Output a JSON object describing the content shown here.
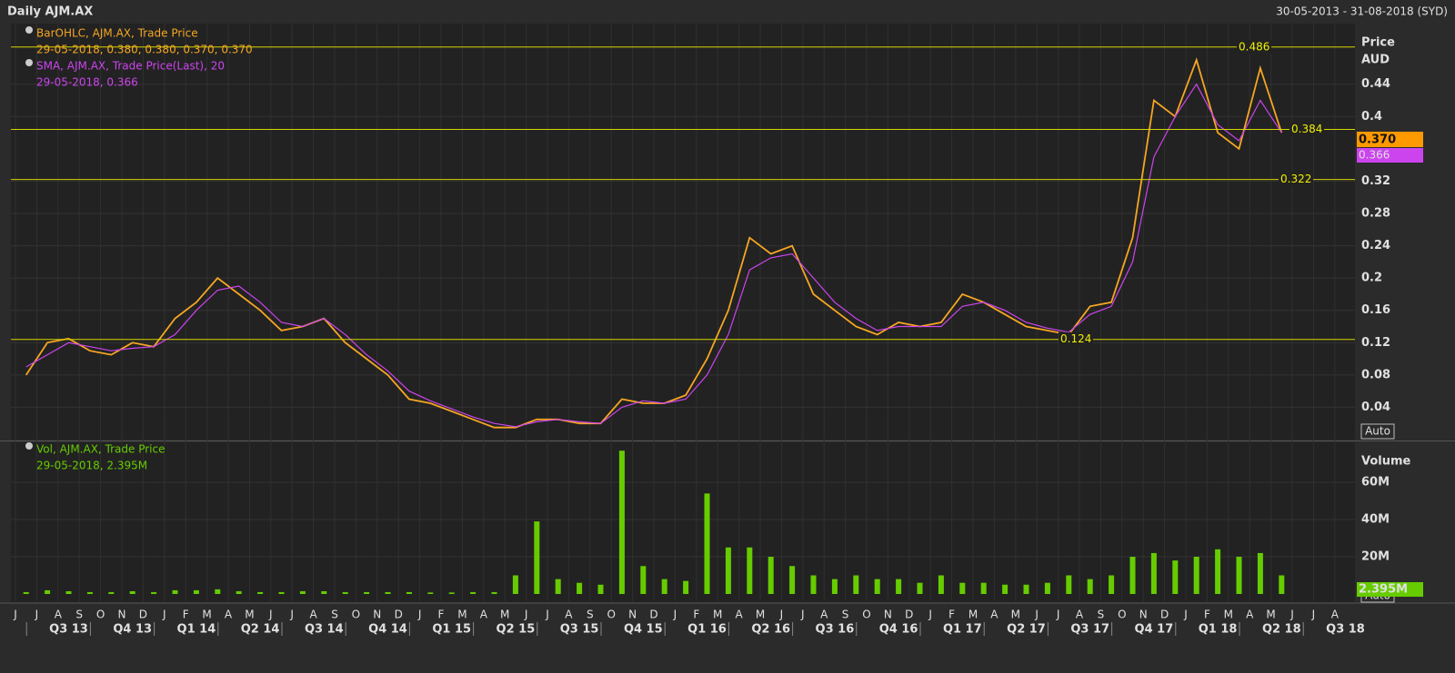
{
  "header": {
    "title": "Daily AJM.AX",
    "range": "30-05-2013 - 31-08-2018 (SYD)"
  },
  "chart_data": [
    {
      "type": "line",
      "axis_title": "Price",
      "unit": "AUD",
      "legend": [
        {
          "name": "BarOHLC, AJM.AX, Trade Price",
          "last": "29-05-2018, 0.380, 0.380, 0.370, 0.370"
        },
        {
          "name": "SMA, AJM.AX, Trade Price(Last),  20",
          "last": "29-05-2018, 0.366"
        }
      ],
      "series": [
        {
          "name": "BarOHLC",
          "color": "#f5a623",
          "values": [
            0.08,
            0.12,
            0.125,
            0.11,
            0.105,
            0.12,
            0.115,
            0.15,
            0.17,
            0.2,
            0.18,
            0.16,
            0.135,
            0.14,
            0.15,
            0.12,
            0.1,
            0.08,
            0.05,
            0.045,
            0.035,
            0.025,
            0.015,
            0.015,
            0.025,
            0.025,
            0.02,
            0.02,
            0.05,
            0.045,
            0.045,
            0.055,
            0.1,
            0.16,
            0.25,
            0.23,
            0.24,
            0.18,
            0.16,
            0.14,
            0.13,
            0.145,
            0.14,
            0.145,
            0.18,
            0.17,
            0.155,
            0.14,
            0.135,
            0.13,
            0.165,
            0.17,
            0.25,
            0.42,
            0.4,
            0.47,
            0.38,
            0.36,
            0.46,
            0.38,
            null,
            null,
            null
          ]
        },
        {
          "name": "SMA",
          "color": "#cc44ee",
          "values": [
            0.09,
            0.105,
            0.12,
            0.115,
            0.11,
            0.113,
            0.115,
            0.13,
            0.16,
            0.185,
            0.19,
            0.17,
            0.145,
            0.14,
            0.15,
            0.13,
            0.105,
            0.085,
            0.06,
            0.048,
            0.038,
            0.028,
            0.02,
            0.016,
            0.022,
            0.025,
            0.022,
            0.02,
            0.04,
            0.048,
            0.045,
            0.05,
            0.08,
            0.13,
            0.21,
            0.225,
            0.23,
            0.2,
            0.17,
            0.15,
            0.135,
            0.14,
            0.14,
            0.14,
            0.165,
            0.17,
            0.16,
            0.145,
            0.138,
            0.133,
            0.155,
            0.165,
            0.22,
            0.35,
            0.4,
            0.44,
            0.39,
            0.37,
            0.42,
            0.38,
            null,
            null,
            null
          ]
        }
      ],
      "ylim": [
        0,
        0.515
      ],
      "yticks": [
        0.04,
        0.08,
        0.12,
        0.16,
        0.2,
        0.24,
        0.28,
        0.32,
        0.4,
        0.44
      ],
      "hlines": [
        0.486,
        0.384,
        0.322,
        0.124
      ],
      "last_badges": [
        {
          "value": 0.37,
          "label": "0.370"
        },
        0.366
      ],
      "scale_button": "Auto"
    },
    {
      "type": "bar",
      "axis_title": "Volume",
      "legend": [
        {
          "name": "Vol, AJM.AX, Trade Price",
          "last": "29-05-2018, 2.395M"
        }
      ],
      "categories": [
        "J",
        "J",
        "A",
        "S",
        "O",
        "N",
        "D",
        "J",
        "F",
        "M",
        "A",
        "M",
        "J",
        "J",
        "A",
        "S",
        "O",
        "N",
        "D",
        "J",
        "F",
        "M",
        "A",
        "M",
        "J",
        "J",
        "A",
        "S",
        "O",
        "N",
        "D",
        "J",
        "F",
        "M",
        "A",
        "M",
        "J",
        "J",
        "A",
        "S",
        "O",
        "N",
        "D",
        "J",
        "F",
        "M",
        "A",
        "M",
        "J",
        "J",
        "A",
        "S",
        "O",
        "N",
        "D",
        "J",
        "F",
        "M",
        "A",
        "M",
        "J",
        "J",
        "A"
      ],
      "quarter_labels": [
        "Q3 13",
        "Q4 13",
        "Q1 14",
        "Q2 14",
        "Q3 14",
        "Q4 14",
        "Q1 15",
        "Q2 15",
        "Q3 15",
        "Q4 15",
        "Q1 16",
        "Q2 16",
        "Q3 16",
        "Q4 16",
        "Q1 17",
        "Q2 17",
        "Q3 17",
        "Q4 17",
        "Q1 18",
        "Q2 18",
        "Q3 18"
      ],
      "series": [
        {
          "name": "Vol",
          "color": "#66cc00",
          "values": [
            1000000,
            2000000,
            1500000,
            1000000,
            1000000,
            1500000,
            1000000,
            2000000,
            2000000,
            2500000,
            1500000,
            1000000,
            1000000,
            1500000,
            1500000,
            1000000,
            1000000,
            1000000,
            1000000,
            800000,
            800000,
            1000000,
            1000000,
            10000000,
            39000000,
            8000000,
            6000000,
            5000000,
            77000000,
            15000000,
            8000000,
            7000000,
            54000000,
            25000000,
            25000000,
            20000000,
            15000000,
            10000000,
            8000000,
            10000000,
            8000000,
            8000000,
            6000000,
            10000000,
            6000000,
            6000000,
            5000000,
            5000000,
            6000000,
            10000000,
            8000000,
            10000000,
            20000000,
            22000000,
            18000000,
            20000000,
            24000000,
            20000000,
            22000000,
            10000000,
            null,
            null,
            null
          ]
        }
      ],
      "ylim": [
        0,
        81500000
      ],
      "yticks": [
        {
          "value": 20000000,
          "label": "20M"
        },
        {
          "value": 40000000,
          "label": "40M"
        },
        {
          "value": 60000000,
          "label": "60M"
        }
      ],
      "last_badge": {
        "value": 2395000,
        "label": "2.395M"
      },
      "scale_button": "Auto"
    }
  ]
}
